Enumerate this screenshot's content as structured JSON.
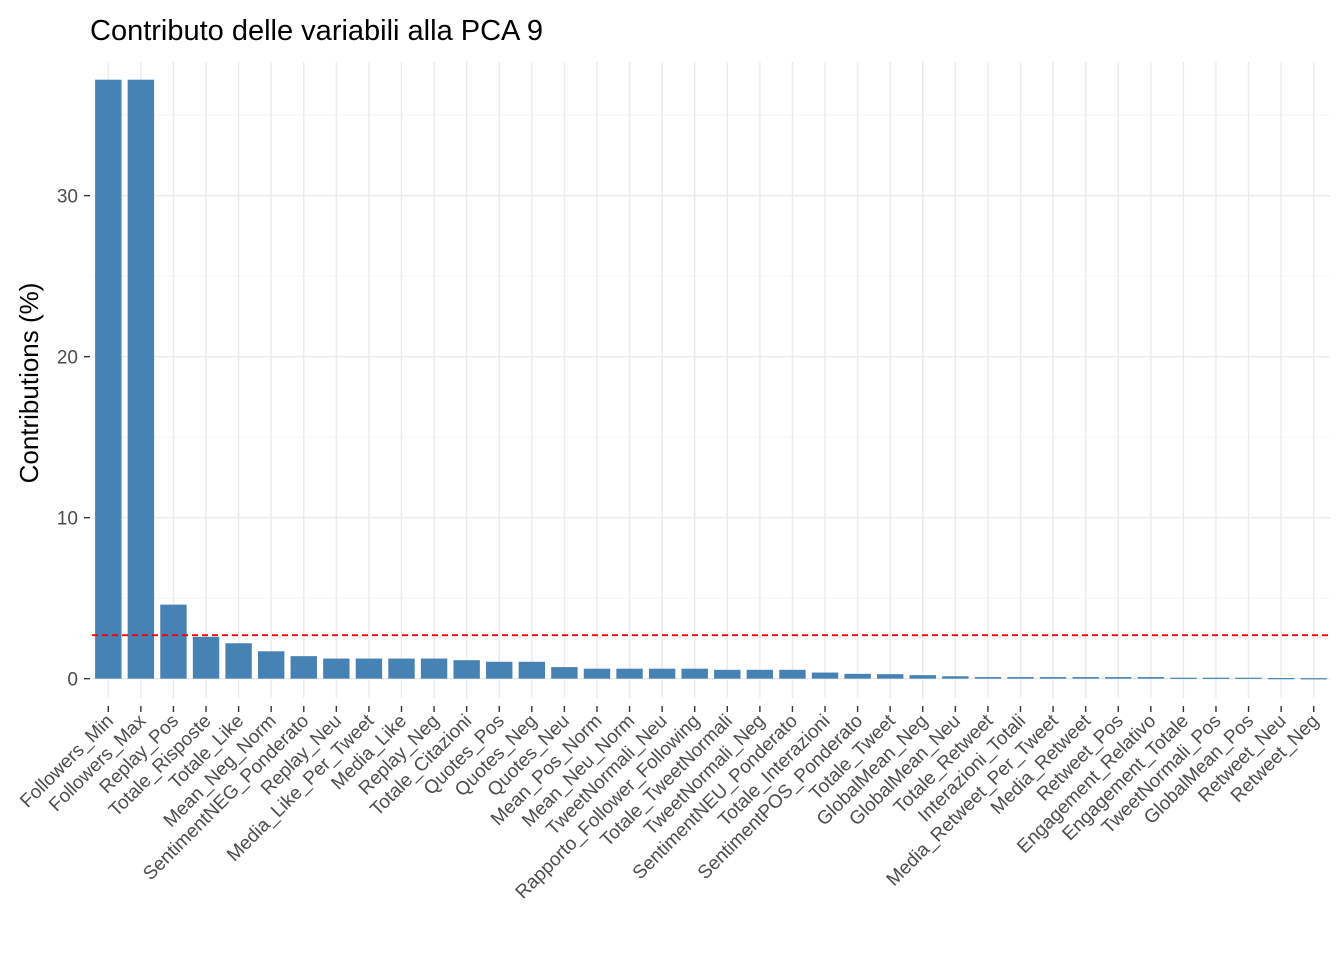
{
  "chart_data": {
    "type": "bar",
    "title": "Contributo delle variabili alla PCA 9",
    "xlabel": "",
    "ylabel": "Contributions (%)",
    "ylim": [
      -1.2,
      38.3
    ],
    "yticks": [
      0,
      10,
      20,
      30
    ],
    "grid": true,
    "bar_color": "#4682B4",
    "reference_line": {
      "value": 2.7,
      "color": "#FF0000",
      "style": "dashed"
    },
    "categories": [
      "Followers_Min",
      "Followers_Max",
      "Replay_Pos",
      "Totale_Risposte",
      "Totale_Like",
      "Mean_Neg_Norm",
      "SentimentNEG_Ponderato",
      "Replay_Neu",
      "Media_Like_Per_Tweet",
      "Media_Like",
      "Replay_Neg",
      "Totale_Citazioni",
      "Quotes_Pos",
      "Quotes_Neg",
      "Quotes_Neu",
      "Mean_Pos_Norm",
      "Mean_Neu_Norm",
      "TweetNormali_Neu",
      "Rapporto_Follower_Following",
      "Totale_TweetNormali",
      "TweetNormali_Neg",
      "SentimentNEU_Ponderato",
      "Totale_Interazioni",
      "SentimentPOS_Ponderato",
      "Totale_Tweet",
      "GlobalMean_Neg",
      "GlobalMean_Neu",
      "Totale_Retweet",
      "Interazioni_Totali",
      "Media_Retweet_Per_Tweet",
      "Media_Retweet",
      "Retweet_Pos",
      "Engagement_Relativo",
      "Engagement_Totale",
      "TweetNormali_Pos",
      "GlobalMean_Pos",
      "Retweet_Neu",
      "Retweet_Neg"
    ],
    "values": [
      37.2,
      37.2,
      4.6,
      2.6,
      2.2,
      1.7,
      1.4,
      1.25,
      1.25,
      1.25,
      1.25,
      1.15,
      1.05,
      1.05,
      0.72,
      0.62,
      0.62,
      0.62,
      0.62,
      0.55,
      0.55,
      0.55,
      0.38,
      0.3,
      0.28,
      0.22,
      0.15,
      0.1,
      0.1,
      0.1,
      0.1,
      0.1,
      0.1,
      0.06,
      0.06,
      0.06,
      0.04,
      0.03
    ]
  }
}
